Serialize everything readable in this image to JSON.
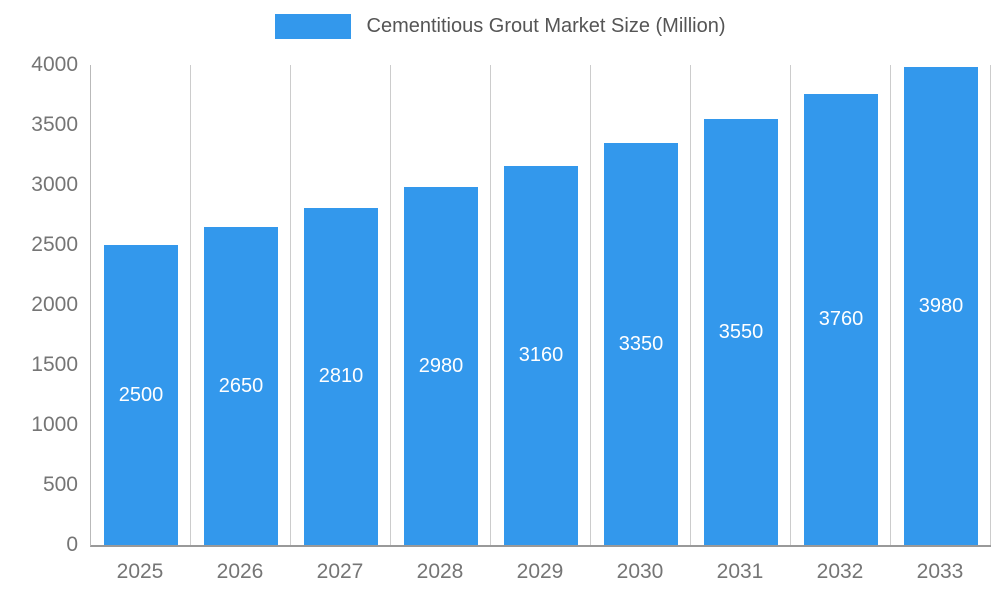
{
  "chart_data": {
    "type": "bar",
    "title": "Cementitious Grout Market Size (Million)",
    "legend": [
      "Cementitious Grout Market Size (Million)"
    ],
    "legend_position": "top",
    "categories": [
      "2025",
      "2026",
      "2027",
      "2028",
      "2029",
      "2030",
      "2031",
      "2032",
      "2033"
    ],
    "values": [
      2500,
      2650,
      2810,
      2980,
      3160,
      3350,
      3550,
      3760,
      3980
    ],
    "xlabel": "",
    "ylabel": "",
    "ylim": [
      0,
      4000
    ],
    "yticks": [
      0,
      500,
      1000,
      1500,
      2000,
      2500,
      3000,
      3500,
      4000
    ],
    "grid": "vertical",
    "bar_color": "#3398EC",
    "value_label_color": "#ffffff",
    "axis_label_color": "#757575"
  }
}
